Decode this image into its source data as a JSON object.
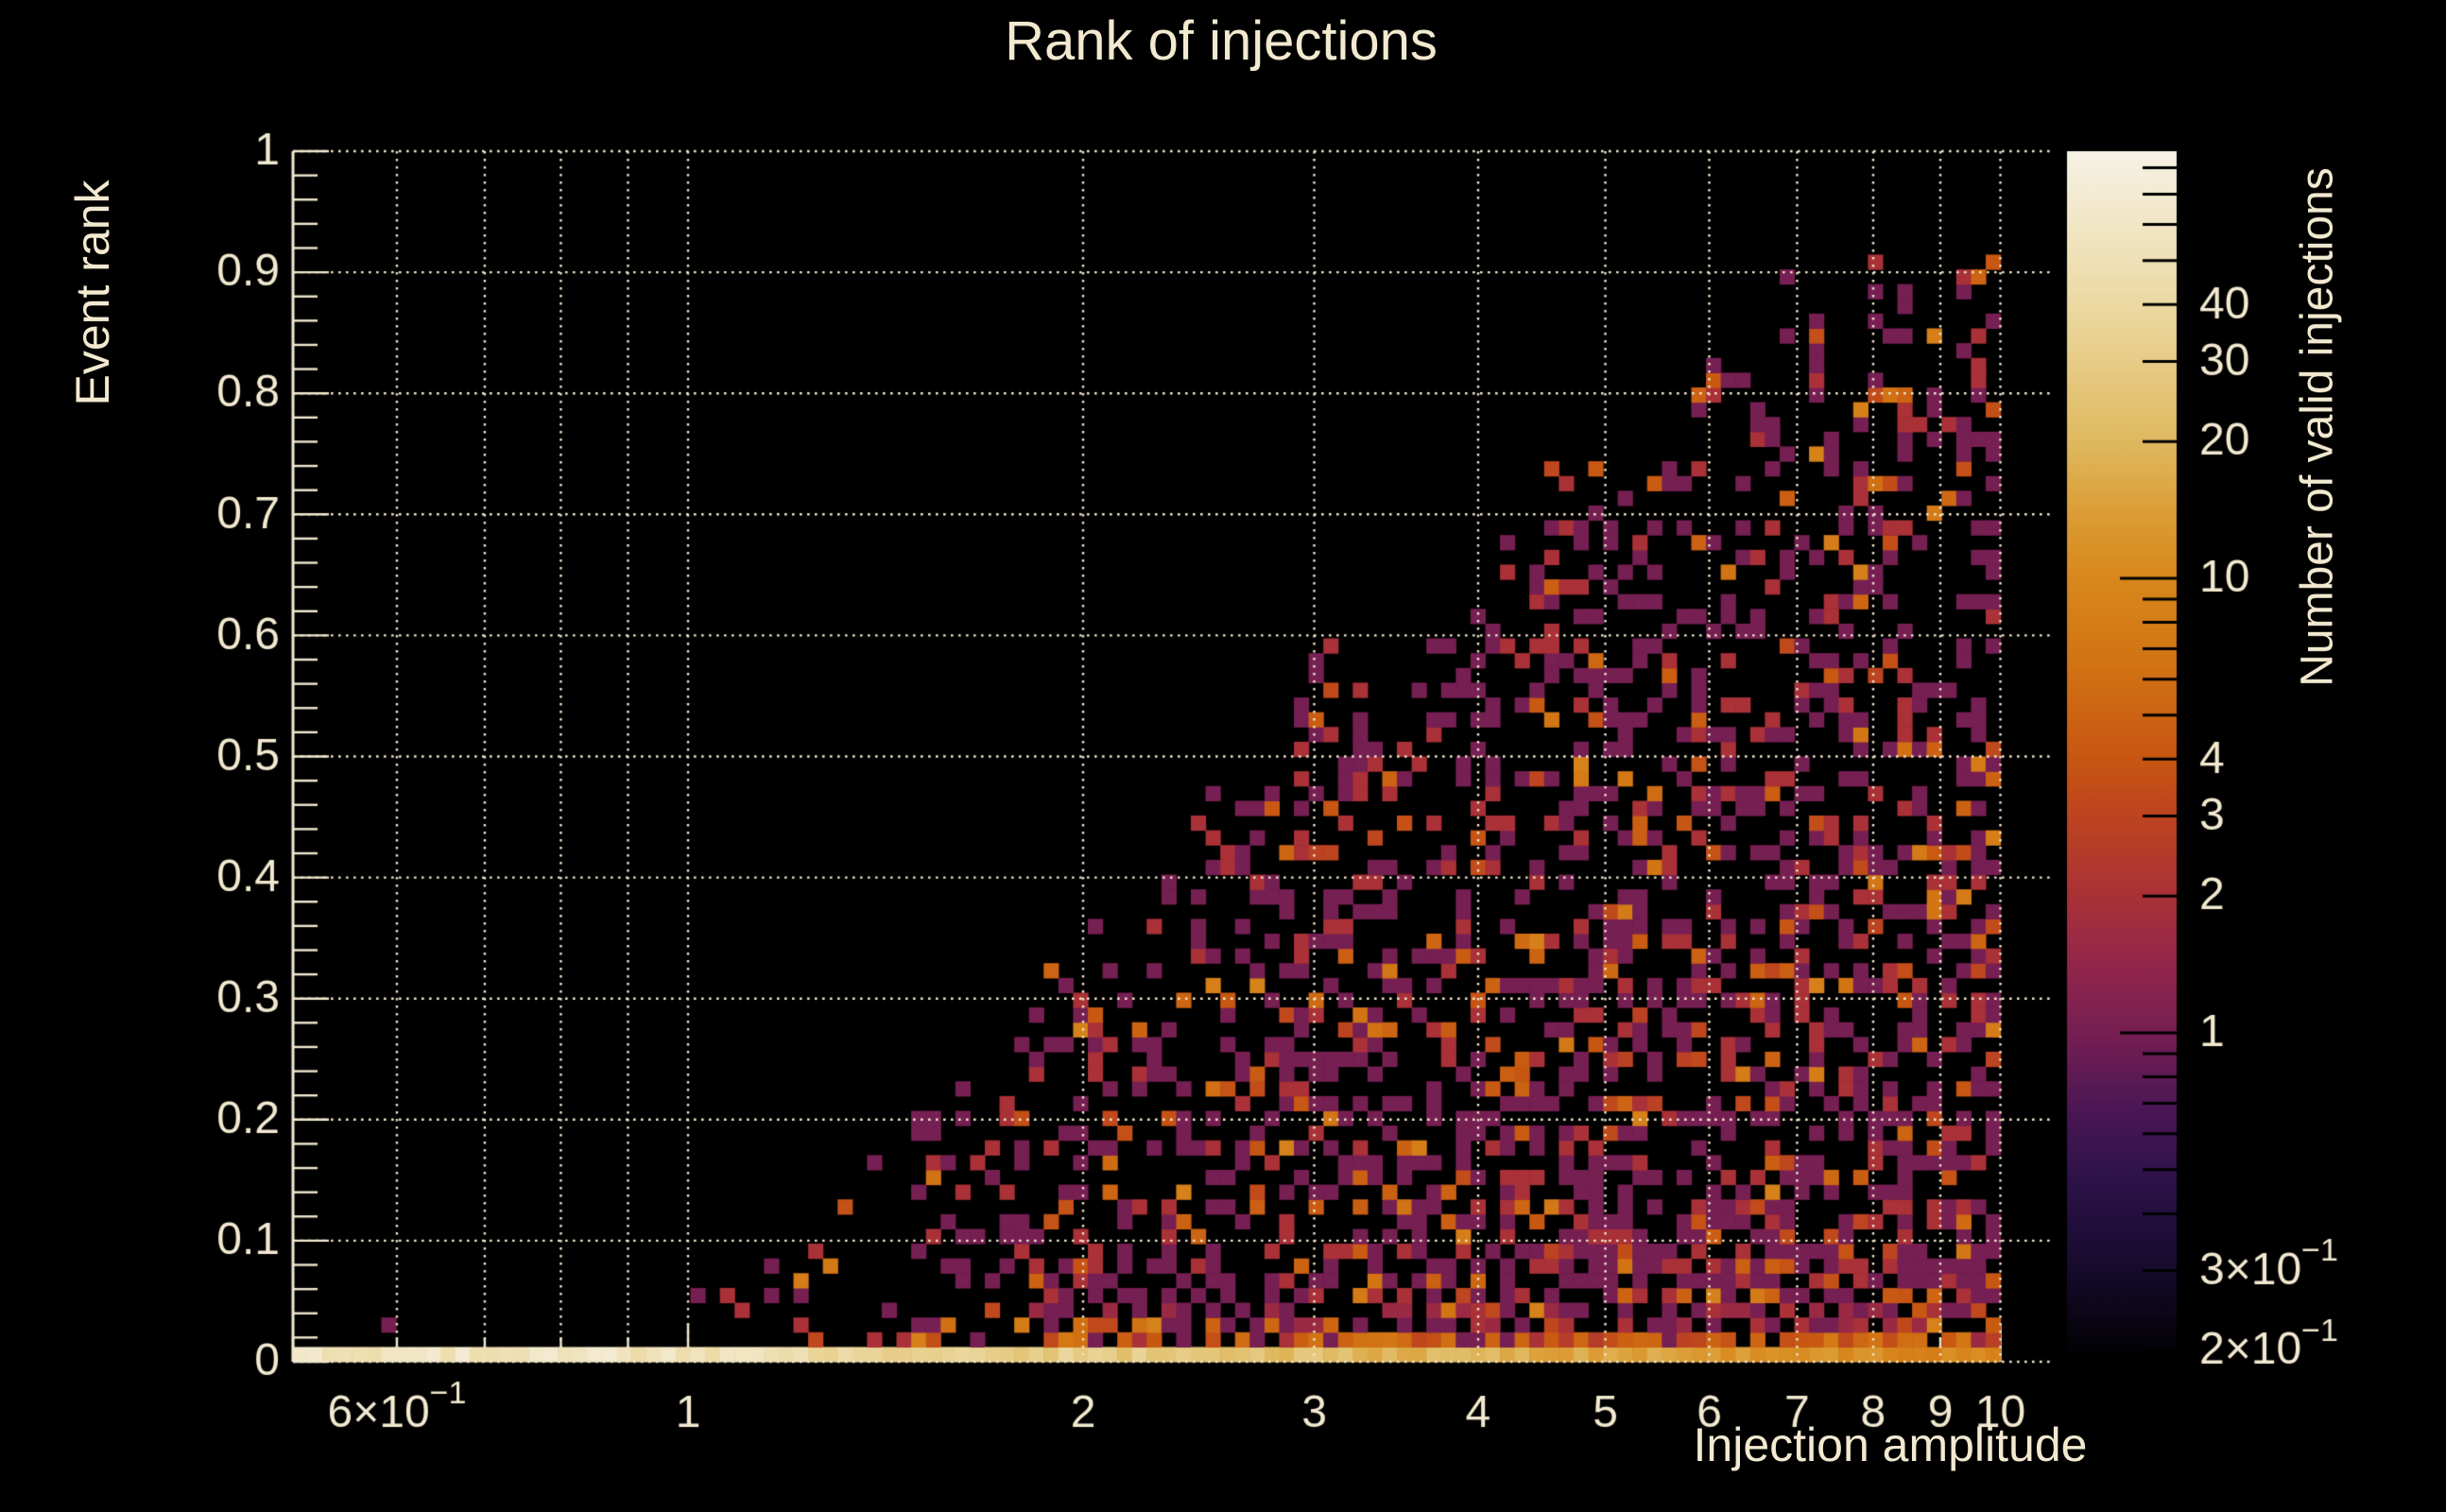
{
  "background": "#000000",
  "text_color": "#f2e9d0",
  "grid_color": "#efe6cb",
  "chart_data": {
    "type": "heatmap",
    "title": "Rank of injections",
    "xlabel": "Injection amplitude",
    "ylabel": "Event rank",
    "zlabel": "Number of valid injections",
    "x_scale": "log",
    "x_range": [
      0.5,
      11.0
    ],
    "y_scale": "linear",
    "y_range": [
      0,
      1
    ],
    "z_scale": "log",
    "z_range": [
      0.189,
      87.0
    ],
    "grid": true,
    "x_grid_values": [
      0.6,
      0.7,
      0.8,
      0.9,
      1,
      2,
      3,
      4,
      5,
      6,
      7,
      8,
      9,
      10
    ],
    "x_tick_values": [
      0.5,
      0.6,
      0.7,
      0.8,
      0.9,
      1,
      2,
      3,
      4,
      5,
      6,
      7,
      8,
      9,
      10
    ],
    "x_tick_labels": [
      {
        "value": 0.6,
        "base": "6×10",
        "sup": "−1"
      },
      {
        "value": 1,
        "base": "1"
      },
      {
        "value": 2,
        "base": "2"
      },
      {
        "value": 3,
        "base": "3"
      },
      {
        "value": 4,
        "base": "4"
      },
      {
        "value": 5,
        "base": "5"
      },
      {
        "value": 6,
        "base": "6"
      },
      {
        "value": 7,
        "base": "7"
      },
      {
        "value": 8,
        "base": "8"
      },
      {
        "value": 9,
        "base": "9"
      },
      {
        "value": 10,
        "base": "10"
      }
    ],
    "y_tick_step_major": 0.1,
    "y_tick_step_minor": 0.02,
    "y_tick_labels": [
      {
        "value": 0,
        "base": "0"
      },
      {
        "value": 0.1,
        "base": "0.1"
      },
      {
        "value": 0.2,
        "base": "0.2"
      },
      {
        "value": 0.3,
        "base": "0.3"
      },
      {
        "value": 0.4,
        "base": "0.4"
      },
      {
        "value": 0.5,
        "base": "0.5"
      },
      {
        "value": 0.6,
        "base": "0.6"
      },
      {
        "value": 0.7,
        "base": "0.7"
      },
      {
        "value": 0.8,
        "base": "0.8"
      },
      {
        "value": 0.9,
        "base": "0.9"
      },
      {
        "value": 1,
        "base": "1"
      }
    ],
    "z_tick_values": [
      0.2,
      0.3,
      0.4,
      0.5,
      0.6,
      0.7,
      0.8,
      0.9,
      1,
      2,
      3,
      4,
      5,
      6,
      7,
      8,
      9,
      10,
      20,
      30,
      40,
      50,
      60,
      70,
      80
    ],
    "z_major_ticks": [
      1,
      10
    ],
    "z_tick_labels": [
      {
        "value": 40,
        "base": "40"
      },
      {
        "value": 30,
        "base": "30"
      },
      {
        "value": 20,
        "base": "20"
      },
      {
        "value": 10,
        "base": "10"
      },
      {
        "value": 4,
        "base": "4"
      },
      {
        "value": 3,
        "base": "3"
      },
      {
        "value": 2,
        "base": "2"
      },
      {
        "value": 1,
        "base": "1"
      },
      {
        "value": 0.3,
        "base": "3×10",
        "sup": "−1"
      },
      {
        "value": 0.2,
        "base": "2×10",
        "sup": "−1"
      }
    ],
    "colormap_stops": [
      [
        0.0,
        "#000000"
      ],
      [
        0.075,
        "#160b2c"
      ],
      [
        0.15,
        "#2d1249"
      ],
      [
        0.21,
        "#4c1754"
      ],
      [
        0.271,
        "#761f53"
      ],
      [
        0.33,
        "#93264a"
      ],
      [
        0.384,
        "#a93137"
      ],
      [
        0.45,
        "#bd4420"
      ],
      [
        0.5,
        "#c85712"
      ],
      [
        0.58,
        "#d27414"
      ],
      [
        0.647,
        "#d8881c"
      ],
      [
        0.7,
        "#dc9c35"
      ],
      [
        0.76,
        "#dfb95f"
      ],
      [
        0.873,
        "#ecd9a2"
      ],
      [
        1.0,
        "#f6f2e6"
      ]
    ],
    "bins": {
      "nx": 116,
      "ny": 82,
      "x_data_max": 10.0
    },
    "pattern": {
      "seed": 20,
      "boundary_knots": [
        [
          0.1,
          0.03
        ],
        [
          0.2242,
          0.065
        ],
        [
          0.33,
          0.18
        ],
        [
          0.4485,
          0.33
        ],
        [
          0.5797,
          0.55
        ],
        [
          0.6727,
          0.64
        ],
        [
          0.7449,
          0.72
        ],
        [
          0.8039,
          0.79
        ],
        [
          0.897,
          0.84
        ],
        [
          0.9692,
          0.88
        ]
      ],
      "density_knots": [
        [
          0.1,
          0.02
        ],
        [
          0.18,
          0.04
        ],
        [
          0.24,
          0.07
        ],
        [
          0.3,
          0.13
        ],
        [
          0.38,
          0.26
        ],
        [
          0.45,
          0.34
        ],
        [
          0.55,
          0.4
        ],
        [
          0.65,
          0.43
        ],
        [
          0.75,
          0.46
        ],
        [
          0.85,
          0.49
        ],
        [
          0.97,
          0.52
        ]
      ],
      "bottom_row": {
        "log10_at_left": 1.74,
        "slope": -1.05,
        "knee": 0.2,
        "noise": 0.22
      },
      "second_row": {
        "start": 0.3,
        "ramp": 2.2,
        "max_p": 0.8,
        "vmin": 2.5,
        "vspan": 5
      },
      "wedge": {
        "lowrank": 0.1,
        "lowrank_boost": 1.35,
        "q_slope": 0.5,
        "value_tiers": [
          [
            0.6,
            1,
            0
          ],
          [
            0.22,
            2,
            0
          ],
          [
            0.12,
            2.8,
            2.4
          ],
          [
            0.06,
            5,
            4
          ]
        ],
        "boundary_jitter": [
          0.92,
          0.18
        ],
        "outlier_margin": 0.04,
        "outlier_p": 0.05
      }
    }
  }
}
